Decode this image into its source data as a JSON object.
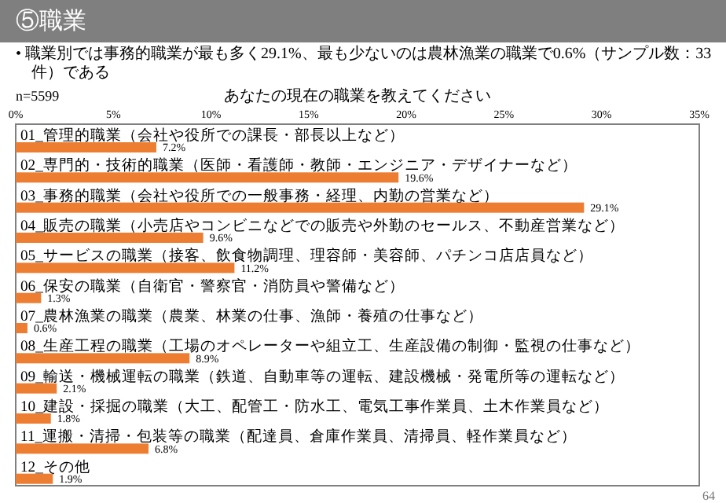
{
  "chart_data": {
    "type": "bar",
    "orientation": "horizontal",
    "title": "⑤職業",
    "subtitle": "• 職業別では事務的職業が最も多く29.1%、最も少ないのは農林漁業の職業で0.6%（サンプル数：33件）である",
    "annotations": [
      "あなたの現在の職業を教えてください",
      "n=5599",
      "64"
    ],
    "categories": [
      "01_管理的職業（会社や役所での課長・部長以上など）",
      "02_専門的・技術的職業（医師・看護師・教師・エンジニア・デザイナーなど）",
      "03_事務的職業（会社や役所での一般事務・経理、内勤の営業など）",
      "04_販売の職業（小売店やコンビニなどでの販売や外勤のセールス、不動産営業など）",
      "05_サービスの職業（接客、飲食物調理、理容師・美容師、パチンコ店店員など）",
      "06_保安の職業（自衛官・警察官・消防員や警備など）",
      "07_農林漁業の職業（農業、林業の仕事、漁師・養殖の仕事など）",
      "08_生産工程の職業（工場のオペレーターや組立工、生産設備の制御・監視の仕事など）",
      "09_輸送・機械運転の職業（鉄道、自動車等の運転、建設機械・発電所等の運転など）",
      "10_建設・採掘の職業（大工、配管工・防水工、電気工事作業員、土木作業員など）",
      "11_運搬・清掃・包装等の職業（配達員、倉庫作業員、清掃員、軽作業員など）",
      "12_その他"
    ],
    "values": [
      7.2,
      19.6,
      29.1,
      9.6,
      11.2,
      1.3,
      0.6,
      8.9,
      2.1,
      1.8,
      6.8,
      1.9
    ],
    "value_labels": [
      "7.2%",
      "19.6%",
      "29.1%",
      "9.6%",
      "11.2%",
      "1.3%",
      "0.6%",
      "8.9%",
      "2.1%",
      "1.8%",
      "6.8%",
      "1.9%"
    ],
    "color": "#ed7d31",
    "xlim": [
      0,
      35
    ],
    "xticks": [
      {
        "value": 0,
        "label": "0%"
      },
      {
        "value": 5,
        "label": "5%"
      },
      {
        "value": 10,
        "label": "10%"
      },
      {
        "value": 15,
        "label": "15%"
      },
      {
        "value": 20,
        "label": "20%"
      },
      {
        "value": 25,
        "label": "25%"
      },
      {
        "value": 30,
        "label": "30%"
      },
      {
        "value": 35,
        "label": "35%"
      }
    ]
  }
}
